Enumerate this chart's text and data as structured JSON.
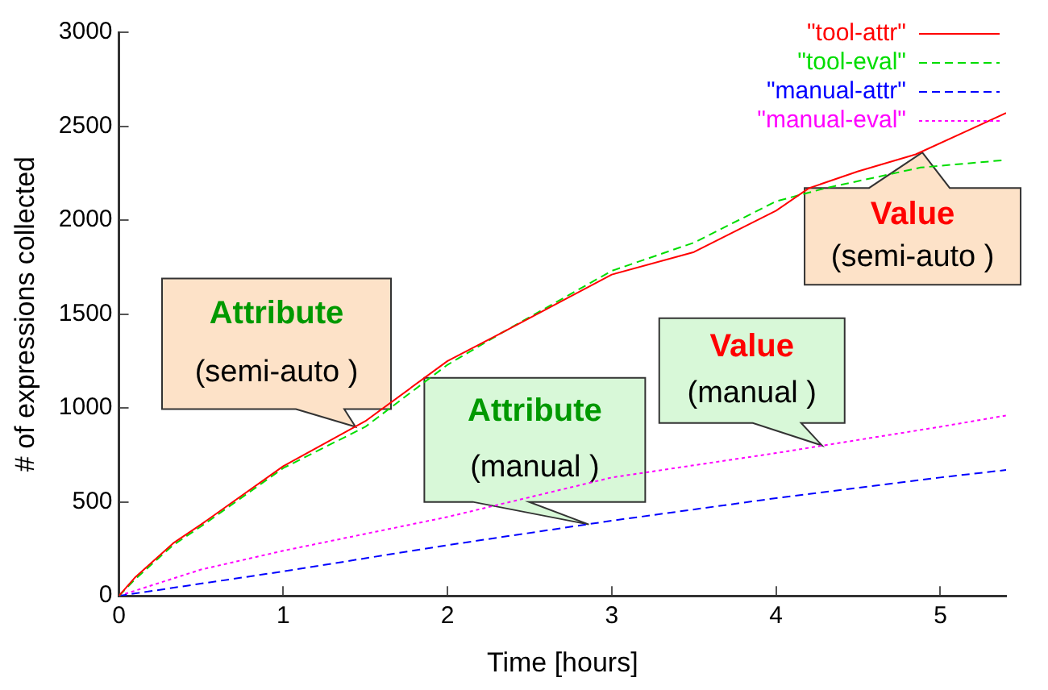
{
  "chart_data": {
    "type": "line",
    "xlabel": "Time [hours]",
    "ylabel": "# of expressions collected",
    "xlim": [
      0,
      5.4
    ],
    "xticks": [
      0,
      1,
      2,
      3,
      4,
      5
    ],
    "ylim": [
      0,
      3000
    ],
    "yticks": [
      0,
      500,
      1000,
      1500,
      2000,
      2500,
      3000
    ],
    "grid": false,
    "legend": "top right",
    "marker": "none",
    "series": [
      {
        "name": "\"tool-attr\"",
        "color": "#ff0000",
        "line_style": "solid",
        "x": [
          0,
          0.1,
          0.33,
          0.5,
          1,
          1.5,
          2,
          2.33,
          3,
          3.5,
          4,
          4.2,
          4.5,
          4.85,
          5.2,
          5.4
        ],
        "values": [
          0,
          100,
          280,
          380,
          690,
          930,
          1250,
          1400,
          1710,
          1830,
          2050,
          2170,
          2260,
          2350,
          2490,
          2570
        ]
      },
      {
        "name": "\"tool-eval\"",
        "color": "#00dd00",
        "line_style": "dashed",
        "x": [
          0,
          0.1,
          0.33,
          0.5,
          1,
          1.5,
          2,
          2.33,
          3,
          3.5,
          4,
          4.3,
          4.46,
          4.88,
          5.4
        ],
        "values": [
          0,
          90,
          270,
          370,
          680,
          900,
          1230,
          1400,
          1730,
          1880,
          2100,
          2170,
          2200,
          2280,
          2320
        ]
      },
      {
        "name": "\"manual-attr\"",
        "color": "#0000ff",
        "line_style": "dashed",
        "x": [
          0,
          1,
          2,
          3,
          4,
          5,
          5.4
        ],
        "values": [
          0,
          130,
          270,
          400,
          520,
          630,
          670
        ]
      },
      {
        "name": "\"manual-eval\"",
        "color": "#ff00ff",
        "line_style": "dotted",
        "x": [
          0,
          0.5,
          1,
          2,
          3,
          4,
          5,
          5.4
        ],
        "values": [
          0,
          140,
          240,
          420,
          630,
          760,
          900,
          960
        ]
      }
    ],
    "annotations": [
      {
        "text": "Attribute\n(semi-auto )",
        "x": 1.44,
        "y": 900
      },
      {
        "text": "Attribute\n(manual )",
        "x": 2.86,
        "y": 380
      },
      {
        "text": "Value\n(manual )",
        "x": 4.28,
        "y": 800
      },
      {
        "text": "Value\n(semi-auto )",
        "x": 4.89,
        "y": 2360
      }
    ]
  }
}
